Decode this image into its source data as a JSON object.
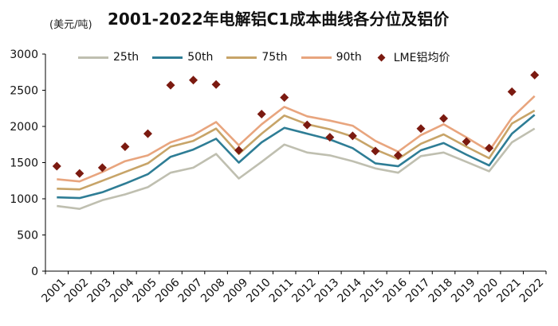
{
  "header": {
    "title": "2001-2022年电解铝C1成本曲线各分位及铝价",
    "unit_label": "(美元/吨)"
  },
  "chart_data": {
    "type": "line",
    "title": "2001-2022年电解铝C1成本曲线各分位及铝价",
    "xlabel": "",
    "ylabel": "(美元/吨)",
    "ylim": [
      0,
      3000
    ],
    "yticks": [
      0,
      500,
      1000,
      1500,
      2000,
      2500,
      3000
    ],
    "grid": false,
    "legend_position": "top",
    "categories": [
      "2001",
      "2002",
      "2003",
      "2004",
      "2005",
      "2006",
      "2007",
      "2008",
      "2009",
      "2010",
      "2011",
      "2012",
      "2013",
      "2014",
      "2015",
      "2016",
      "2017",
      "2018",
      "2019",
      "2020",
      "2021",
      "2022"
    ],
    "series": [
      {
        "name": "25th",
        "type": "line",
        "color": "#bfbfb0",
        "values": [
          900,
          860,
          980,
          1060,
          1160,
          1360,
          1430,
          1620,
          1280,
          1510,
          1750,
          1640,
          1600,
          1520,
          1420,
          1360,
          1590,
          1640,
          1510,
          1380,
          1780,
          1970
        ]
      },
      {
        "name": "50th",
        "type": "line",
        "color": "#2e7d95",
        "values": [
          1020,
          1010,
          1090,
          1210,
          1340,
          1580,
          1680,
          1830,
          1500,
          1780,
          1980,
          1900,
          1820,
          1700,
          1490,
          1450,
          1670,
          1770,
          1610,
          1460,
          1900,
          2160
        ]
      },
      {
        "name": "75th",
        "type": "line",
        "color": "#c7a468",
        "values": [
          1140,
          1130,
          1250,
          1370,
          1490,
          1720,
          1800,
          1970,
          1620,
          1900,
          2150,
          2030,
          1960,
          1860,
          1680,
          1550,
          1760,
          1890,
          1720,
          1560,
          2040,
          2220
        ]
      },
      {
        "name": "90th",
        "type": "line",
        "color": "#e8a57e",
        "values": [
          1270,
          1240,
          1370,
          1520,
          1600,
          1780,
          1880,
          2060,
          1740,
          2030,
          2270,
          2140,
          2080,
          2010,
          1800,
          1650,
          1880,
          2030,
          1850,
          1660,
          2120,
          2420
        ]
      },
      {
        "name": "LME铝均价",
        "type": "scatter",
        "color": "#7b1a10",
        "values": [
          1450,
          1350,
          1430,
          1720,
          1900,
          2570,
          2640,
          2580,
          1670,
          2170,
          2400,
          2020,
          1850,
          1870,
          1660,
          1600,
          1970,
          2110,
          1790,
          1700,
          2480,
          2710
        ]
      }
    ]
  }
}
